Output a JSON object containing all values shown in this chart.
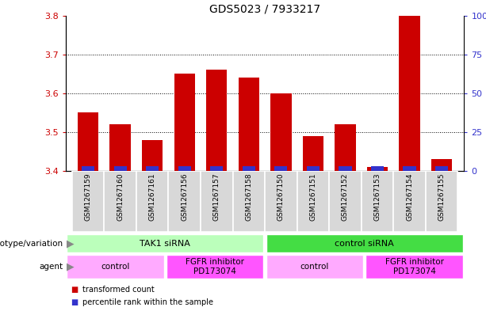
{
  "title": "GDS5023 / 7933217",
  "samples": [
    "GSM1267159",
    "GSM1267160",
    "GSM1267161",
    "GSM1267156",
    "GSM1267157",
    "GSM1267158",
    "GSM1267150",
    "GSM1267151",
    "GSM1267152",
    "GSM1267153",
    "GSM1267154",
    "GSM1267155"
  ],
  "red_values": [
    3.55,
    3.52,
    3.48,
    3.65,
    3.66,
    3.64,
    3.6,
    3.49,
    3.52,
    3.41,
    3.8,
    3.43
  ],
  "blue_values": [
    2,
    2,
    2,
    2,
    2,
    2,
    2,
    2,
    2,
    2,
    2,
    2
  ],
  "y_min": 3.4,
  "y_max": 3.8,
  "y_ticks": [
    3.4,
    3.5,
    3.6,
    3.7,
    3.8
  ],
  "y2_ticks": [
    0,
    25,
    50,
    75,
    100
  ],
  "red_color": "#cc0000",
  "blue_color": "#3333cc",
  "bar_width": 0.65,
  "blue_bar_width": 0.4,
  "genotype_groups": [
    {
      "label": "TAK1 siRNA",
      "start": 0,
      "end": 6,
      "color": "#bbffbb"
    },
    {
      "label": "control siRNA",
      "start": 6,
      "end": 12,
      "color": "#44dd44"
    }
  ],
  "agent_groups": [
    {
      "label": "control",
      "start": 0,
      "end": 3,
      "color": "#ffaaff"
    },
    {
      "label": "FGFR inhibitor\nPD173074",
      "start": 3,
      "end": 6,
      "color": "#ff55ff"
    },
    {
      "label": "control",
      "start": 6,
      "end": 9,
      "color": "#ffaaff"
    },
    {
      "label": "FGFR inhibitor\nPD173074",
      "start": 9,
      "end": 12,
      "color": "#ff55ff"
    }
  ],
  "legend_items": [
    {
      "label": "transformed count",
      "color": "#cc0000"
    },
    {
      "label": "percentile rank within the sample",
      "color": "#3333cc"
    }
  ],
  "sample_bg": "#d8d8d8",
  "title_fontsize": 10,
  "tick_fontsize": 8,
  "sample_fontsize": 6.5,
  "geno_fontsize": 8,
  "agent_fontsize": 7.5,
  "arrow_color": "#888888"
}
